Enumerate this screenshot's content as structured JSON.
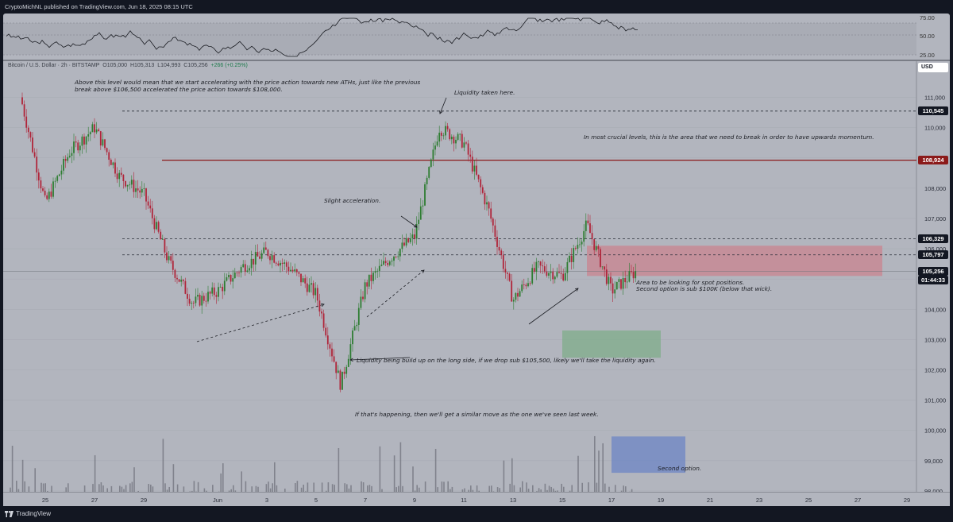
{
  "header": {
    "publisher_line": "CryptoMichNL published on TradingView.com, Jun 18, 2025 08:15 UTC"
  },
  "symbol_legend": {
    "name": "Bitcoin / U.S. Dollar · 2h · BITSTAMP",
    "open": "O105,000",
    "high": "H105,313",
    "low": "L104,993",
    "close": "C105,256",
    "change": "+266 (+0.25%)"
  },
  "price_axis": {
    "currency": "USD",
    "ticks": [
      "111,000",
      "110,000",
      "109,000",
      "108,000",
      "107,000",
      "106,000",
      "105,000",
      "104,000",
      "103,000",
      "102,000",
      "101,000",
      "100,000",
      "99,000",
      "98,000"
    ],
    "tags": [
      {
        "label": "110,545",
        "style": "dark"
      },
      {
        "label": "108,924",
        "style": "red"
      },
      {
        "label": "106,329",
        "style": "dark"
      },
      {
        "label": "105,797",
        "style": "dark"
      },
      {
        "label": "105,256",
        "style": "dark"
      },
      {
        "label": "01:44:33",
        "style": "dark"
      }
    ]
  },
  "rsi_axis": {
    "ticks": [
      "75.00",
      "50.00",
      "25.00"
    ]
  },
  "time_axis": {
    "labels": [
      "25",
      "27",
      "29",
      "Jun",
      "3",
      "5",
      "7",
      "9",
      "11",
      "13",
      "15",
      "17",
      "19",
      "21",
      "23",
      "25",
      "27",
      "29"
    ]
  },
  "annotations": {
    "ath_note": "Above this level would mean that we start accelerating with the price action towards new ATHs, just like the previous break above $106,500 accelerated the price action towards $108,000.",
    "liquidity_taken": "Liquidity taken here.",
    "crucial_levels": "In most crucial levels, this is the area that we need to break in order to have upwards momentum.",
    "slight_acceleration": "Slight acceleration.",
    "spot_area_line1": "Area to be looking for spot positions.",
    "spot_area_line2": "Second option is sub $100K (below that wick).",
    "liquidity_build": "Liquidity being build up on the long side, if we drop sub $105,500, likely we'll take the liquidity again.",
    "similar_move": "If that's happening, then we'll get a similar move as the one we've seen last week.",
    "second_option": "Second option."
  },
  "footer": {
    "brand": "TradingView"
  },
  "colors": {
    "background": "#b2b5be",
    "bull_candle": "#2e7d32",
    "bear_candle": "#b0253a",
    "resistance_zone": "#c9848f",
    "support_zone": "#7fae8a",
    "second_option_zone": "#6c86c4",
    "level_red": "#8b1a1a"
  },
  "chart_data": {
    "type": "candlestick",
    "symbol": "Bitcoin / U.S. Dollar",
    "timeframe": "2h",
    "ylim": [
      97500,
      111800
    ],
    "levels": [
      {
        "price": 110545,
        "style": "dashed"
      },
      {
        "price": 108924,
        "style": "solid",
        "color": "red"
      },
      {
        "price": 106329,
        "style": "dashed"
      },
      {
        "price": 105797,
        "style": "dashed"
      },
      {
        "price": 105256,
        "style": "current"
      }
    ],
    "zones": [
      {
        "from_date": "Jun 16",
        "to_date": "Jun 28",
        "low": 105100,
        "high": 106100,
        "kind": "resistance"
      },
      {
        "from_date": "Jun 15",
        "to_date": "Jun 19",
        "low": 102400,
        "high": 103300,
        "kind": "support"
      },
      {
        "from_date": "Jun 17",
        "to_date": "Jun 20",
        "low": 98600,
        "high": 99800,
        "kind": "second option"
      }
    ],
    "approx_path": [
      {
        "date": "May 24",
        "price": 111000
      },
      {
        "date": "May 25",
        "price": 107500
      },
      {
        "date": "May 26",
        "price": 109200
      },
      {
        "date": "May 27",
        "price": 110000
      },
      {
        "date": "May 28",
        "price": 108400
      },
      {
        "date": "May 29",
        "price": 107800
      },
      {
        "date": "May 30",
        "price": 105600
      },
      {
        "date": "May 31",
        "price": 104200
      },
      {
        "date": "Jun 1",
        "price": 104600
      },
      {
        "date": "Jun 2",
        "price": 105400
      },
      {
        "date": "Jun 3",
        "price": 105900
      },
      {
        "date": "Jun 4",
        "price": 105300
      },
      {
        "date": "Jun 5",
        "price": 104500
      },
      {
        "date": "Jun 6",
        "price": 101500
      },
      {
        "date": "Jun 7",
        "price": 104800
      },
      {
        "date": "Jun 8",
        "price": 105700
      },
      {
        "date": "Jun 9",
        "price": 106400
      },
      {
        "date": "Jun 10",
        "price": 110000
      },
      {
        "date": "Jun 11",
        "price": 109500
      },
      {
        "date": "Jun 12",
        "price": 107300
      },
      {
        "date": "Jun 13",
        "price": 104300
      },
      {
        "date": "Jun 14",
        "price": 105400
      },
      {
        "date": "Jun 15",
        "price": 105100
      },
      {
        "date": "Jun 16",
        "price": 106800
      },
      {
        "date": "Jun 17",
        "price": 104600
      },
      {
        "date": "Jun 18",
        "price": 105256
      }
    ]
  }
}
